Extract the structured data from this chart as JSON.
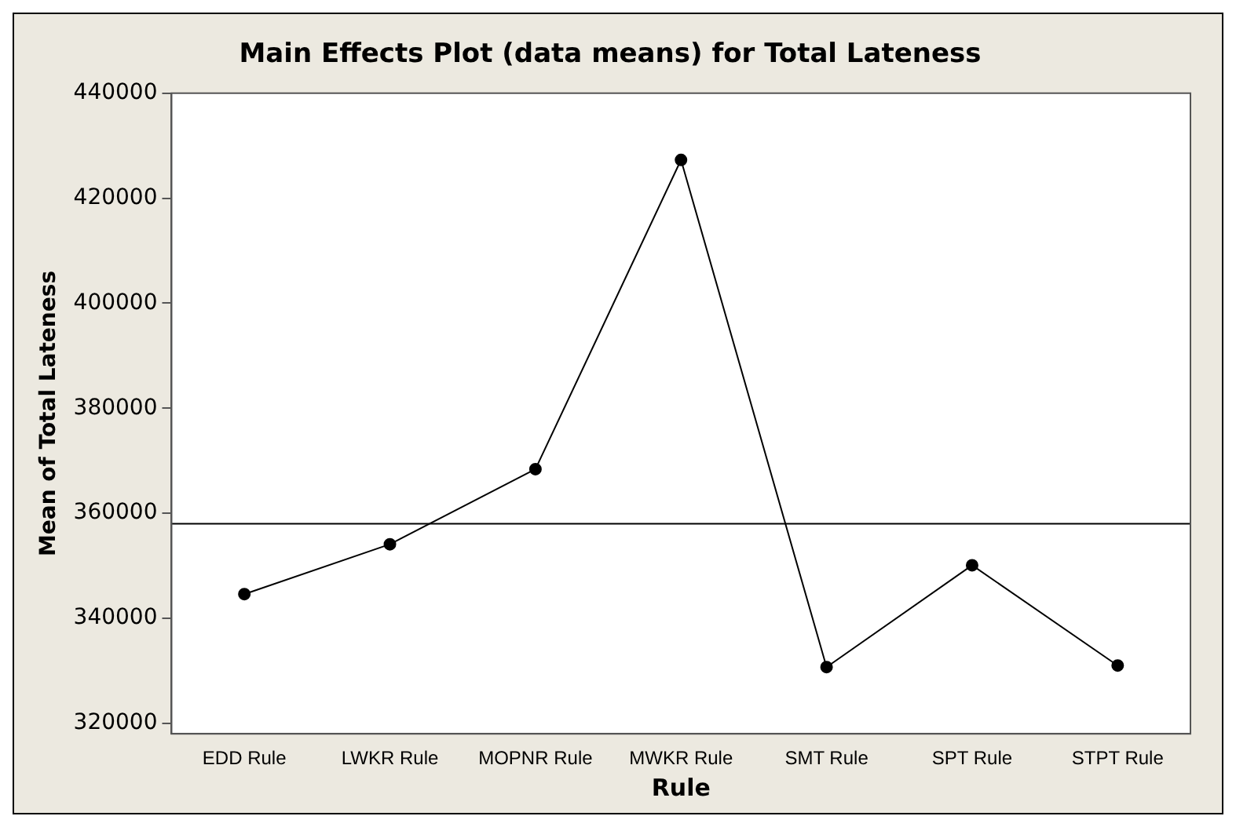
{
  "chart_data": {
    "type": "line",
    "title": "Main Effects Plot (data means) for Total Lateness",
    "xlabel": "Rule",
    "ylabel": "Mean of Total Lateness",
    "categories": [
      "EDD Rule",
      "LWKR Rule",
      "MOPNR Rule",
      "MWKR Rule",
      "SMT Rule",
      "SPT Rule",
      "STPT Rule"
    ],
    "series": [
      {
        "color": "#000000",
        "values": [
          344600,
          354100,
          368400,
          427300,
          330700,
          350100,
          331000
        ]
      }
    ],
    "ylim": [
      318000,
      440000
    ],
    "yticks": [
      320000,
      340000,
      360000,
      380000,
      400000,
      420000,
      440000
    ],
    "ref_lines": [
      {
        "axis": "y",
        "value": 358000,
        "color": "#000000"
      }
    ],
    "grid": false,
    "legend": false,
    "marker": "circle",
    "line_style": "solid"
  }
}
